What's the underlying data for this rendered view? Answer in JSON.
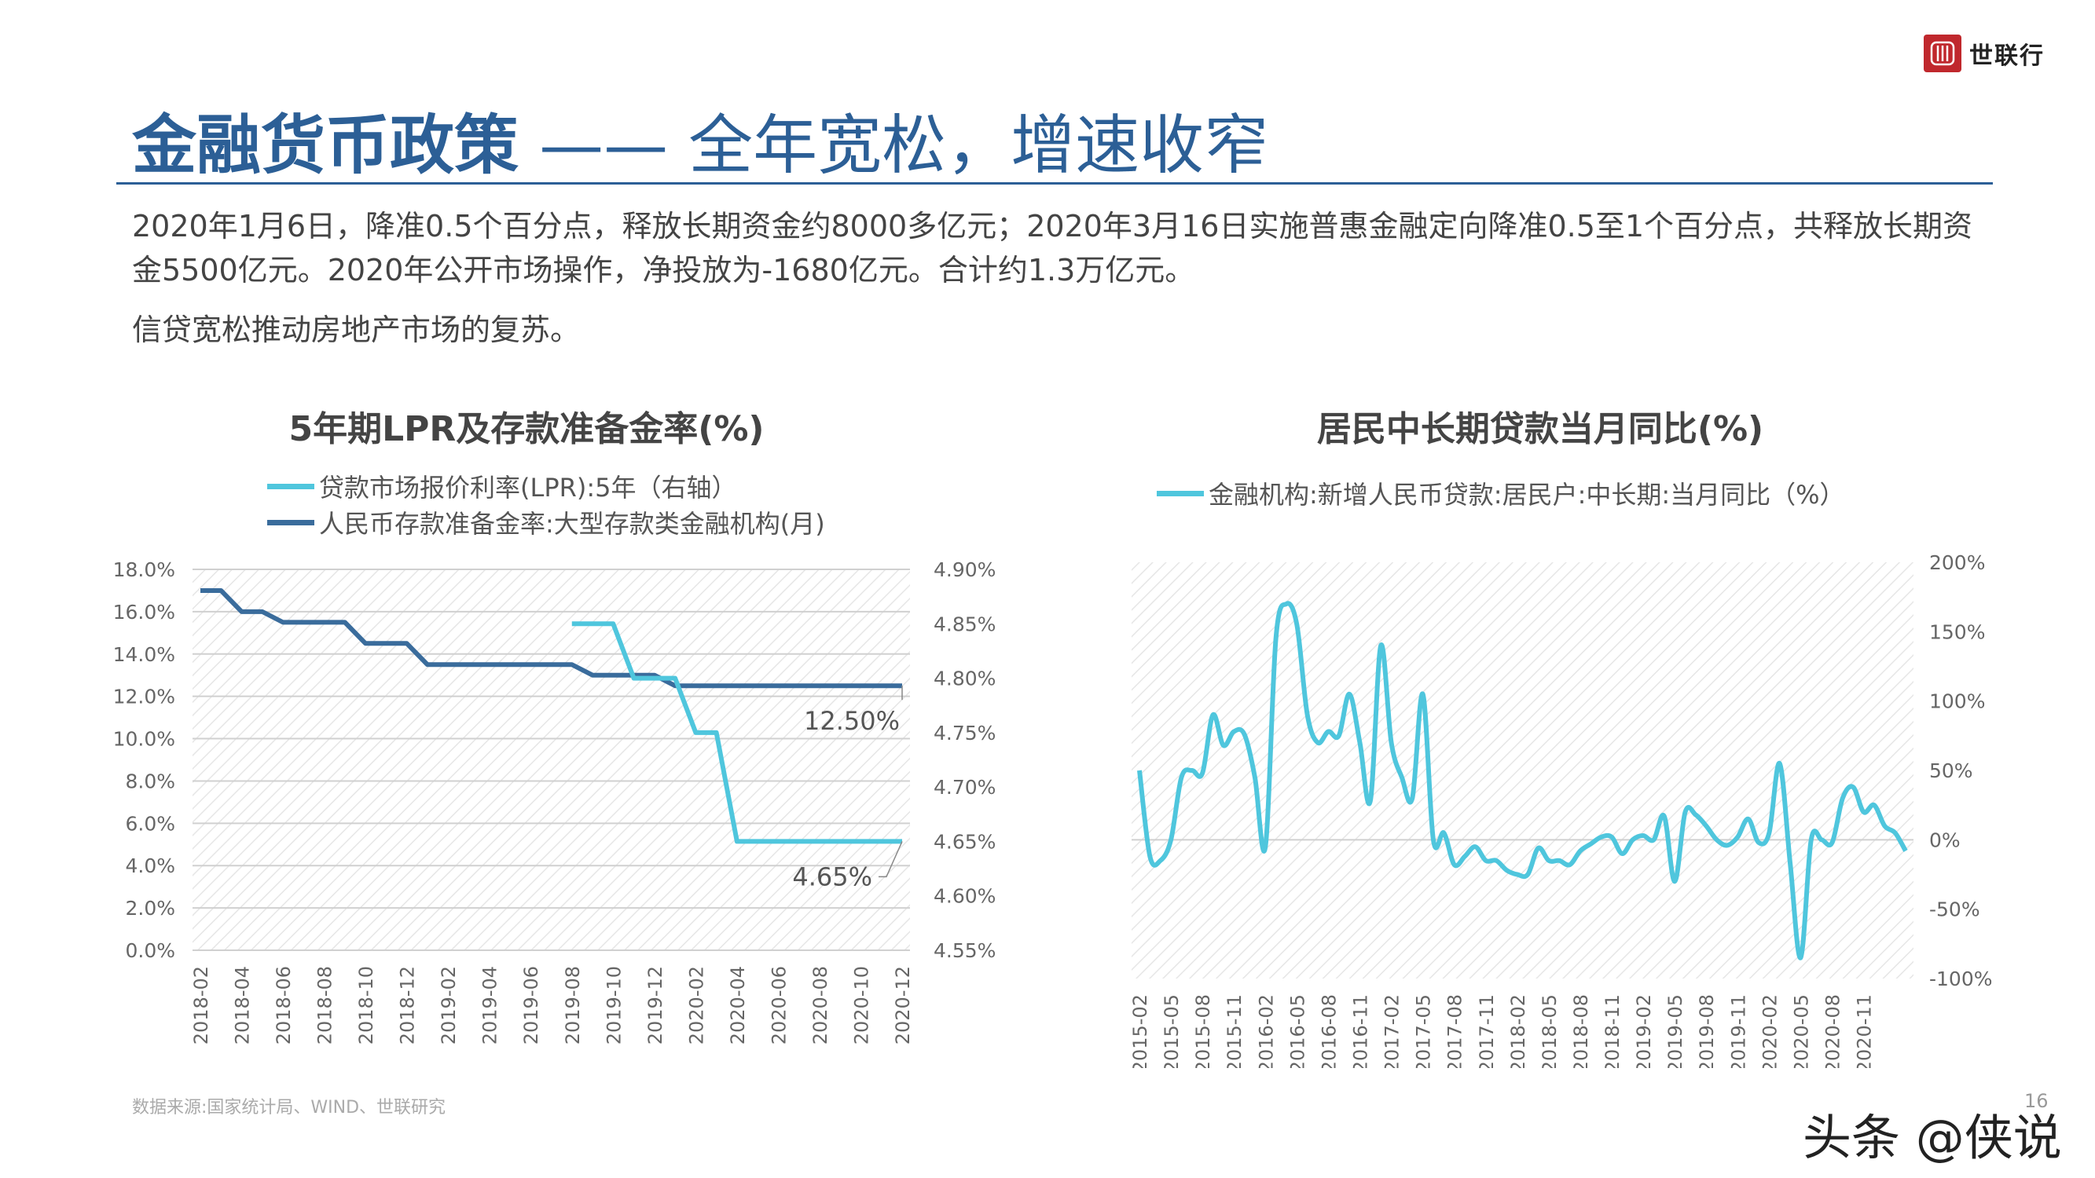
{
  "header": {
    "brand": "世联行",
    "title_bold": "金融货币政策",
    "title_light": " —— 全年宽松，增速收窄"
  },
  "body_text": {
    "paragraph1": "2020年1月6日，降准0.5个百分点，释放长期资金约8000多亿元；2020年3月16日实施普惠金融定向降准0.5至1个百分点，共释放长期资金5500亿元。2020年公开市场操作，净投放为-1680亿元。合计约1.3万亿元。",
    "paragraph2": "信贷宽松推动房地产市场的复苏。"
  },
  "footer": {
    "source": "数据来源:国家统计局、WIND、世联研究",
    "page_number": "16",
    "watermark": "头条 @侠说"
  },
  "chart_data": [
    {
      "type": "line",
      "title": "5年期LPR及存款准备金率(%)",
      "x": [
        "2018-02",
        "2018-03",
        "2018-04",
        "2018-05",
        "2018-06",
        "2018-07",
        "2018-08",
        "2018-09",
        "2018-10",
        "2018-11",
        "2018-12",
        "2019-01",
        "2019-02",
        "2019-03",
        "2019-04",
        "2019-05",
        "2019-06",
        "2019-07",
        "2019-08",
        "2019-09",
        "2019-10",
        "2019-11",
        "2019-12",
        "2020-01",
        "2020-02",
        "2020-03",
        "2020-04",
        "2020-05",
        "2020-06",
        "2020-07",
        "2020-08",
        "2020-09",
        "2020-10",
        "2020-11",
        "2020-12"
      ],
      "x_tick_labels": [
        "2018-02",
        "2018-04",
        "2018-06",
        "2018-08",
        "2018-10",
        "2018-12",
        "2019-02",
        "2019-04",
        "2019-06",
        "2019-08",
        "2019-10",
        "2019-12",
        "2020-02",
        "2020-04",
        "2020-06",
        "2020-08",
        "2020-10",
        "2020-12"
      ],
      "series": [
        {
          "name": "贷款市场报价利率(LPR):5年（右轴）",
          "axis": "right",
          "color": "#4fc6dd",
          "values": [
            null,
            null,
            null,
            null,
            null,
            null,
            null,
            null,
            null,
            null,
            null,
            null,
            null,
            null,
            null,
            null,
            null,
            null,
            4.85,
            4.85,
            4.85,
            4.8,
            4.8,
            4.8,
            4.75,
            4.75,
            4.65,
            4.65,
            4.65,
            4.65,
            4.65,
            4.65,
            4.65,
            4.65,
            4.65
          ]
        },
        {
          "name": "人民币存款准备金率:大型存款类金融机构(月)",
          "axis": "left",
          "color": "#3a6c9c",
          "values": [
            17.0,
            17.0,
            16.0,
            16.0,
            15.5,
            15.5,
            15.5,
            15.5,
            14.5,
            14.5,
            14.5,
            13.5,
            13.5,
            13.5,
            13.5,
            13.5,
            13.5,
            13.5,
            13.5,
            13.0,
            13.0,
            13.0,
            13.0,
            12.5,
            12.5,
            12.5,
            12.5,
            12.5,
            12.5,
            12.5,
            12.5,
            12.5,
            12.5,
            12.5,
            12.5
          ]
        }
      ],
      "y_left": {
        "ticks": [
          "0.0%",
          "2.0%",
          "4.0%",
          "6.0%",
          "8.0%",
          "10.0%",
          "12.0%",
          "14.0%",
          "16.0%",
          "18.0%"
        ],
        "range": [
          0,
          18
        ]
      },
      "y_right": {
        "ticks": [
          "4.55%",
          "4.60%",
          "4.65%",
          "4.70%",
          "4.75%",
          "4.80%",
          "4.85%",
          "4.90%"
        ],
        "range": [
          4.55,
          4.9
        ]
      },
      "annotations": [
        "12.50%",
        "4.65%"
      ],
      "legend_position": "top"
    },
    {
      "type": "line",
      "title": "居民中长期贷款当月同比(%)",
      "x_tick_labels": [
        "2015-02",
        "2015-05",
        "2015-08",
        "2015-11",
        "2016-02",
        "2016-05",
        "2016-08",
        "2016-11",
        "2017-02",
        "2017-05",
        "2017-08",
        "2017-11",
        "2018-02",
        "2018-05",
        "2018-08",
        "2018-11",
        "2019-02",
        "2019-05",
        "2019-08",
        "2019-11",
        "2020-02",
        "2020-05",
        "2020-08",
        "2020-11"
      ],
      "series": [
        {
          "name": "金融机构:新增人民币贷款:居民户:中长期:当月同比（%）",
          "color": "#4fc6dd",
          "values": [
            50,
            -12,
            -15,
            0,
            45,
            50,
            48,
            90,
            68,
            78,
            76,
            45,
            -5,
            145,
            170,
            155,
            90,
            70,
            78,
            75,
            105,
            70,
            28,
            140,
            70,
            45,
            30,
            105,
            0,
            5,
            -18,
            -12,
            -5,
            -15,
            -15,
            -22,
            -25,
            -25,
            -6,
            -15,
            -15,
            -18,
            -8,
            -3,
            2,
            2,
            -10,
            0,
            3,
            0,
            17,
            -30,
            20,
            18,
            10,
            0,
            -4,
            2,
            15,
            -2,
            5,
            55,
            -17,
            -85,
            0,
            0,
            -2,
            30,
            38,
            20,
            25,
            10,
            5,
            -8
          ]
        }
      ],
      "y_right": {
        "ticks": [
          "-100%",
          "-50%",
          "0%",
          "50%",
          "100%",
          "150%",
          "200%"
        ],
        "range": [
          -100,
          200
        ]
      },
      "legend_position": "top"
    }
  ]
}
